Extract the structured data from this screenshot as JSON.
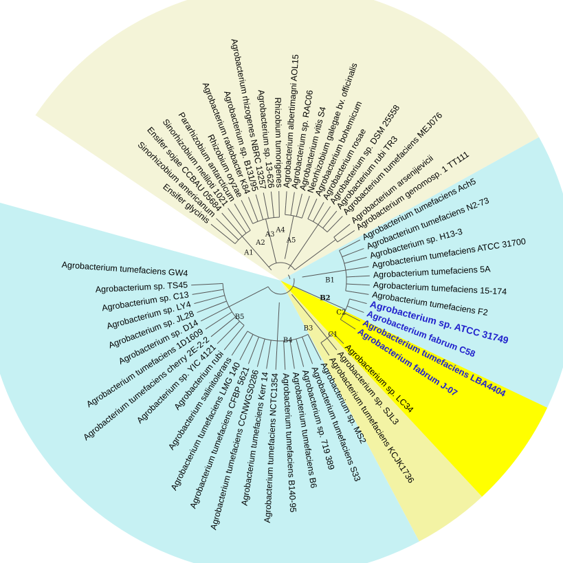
{
  "colors": {
    "clade_a": "#f4f4d8",
    "clade_b": "#c6f1f3",
    "clade_c": "#f3f3a4",
    "highlight": "#ffff00",
    "highlight_text": "#2222cc",
    "branch": "#555555"
  },
  "sectors": [
    {
      "name": "clade-A-sector",
      "color": "clade_a",
      "from": -146,
      "to": -29
    },
    {
      "name": "clade-B-sector",
      "color": "clade_b",
      "from": -29,
      "to": 38
    },
    {
      "name": "clade-C-sector",
      "color": "clade_c",
      "from": 38,
      "to": 62
    },
    {
      "name": "clade-B-sector-lower",
      "color": "clade_b",
      "from": 62,
      "to": 195.5
    }
  ],
  "highlight_sector": {
    "from": 25.5,
    "to": 47
  },
  "node_labels": [
    {
      "text": "A1",
      "a": -139,
      "r": 61,
      "bold": false
    },
    {
      "text": "A2",
      "a": -118,
      "r": 62,
      "bold": false
    },
    {
      "text": "A3",
      "a": -103,
      "r": 68,
      "bold": false
    },
    {
      "text": "A4",
      "a": -90,
      "r": 73,
      "bold": false
    },
    {
      "text": "A5",
      "a": -75,
      "r": 60,
      "bold": false
    },
    {
      "text": "B1",
      "a": 0,
      "r": 72,
      "bold": false
    },
    {
      "text": "B2",
      "a": 22,
      "r": 70,
      "bold": true
    },
    {
      "text": "C2",
      "a": 28,
      "r": 100,
      "bold": false
    },
    {
      "text": "C1",
      "a": 46,
      "r": 110,
      "bold": false
    },
    {
      "text": "B3",
      "a": 60,
      "r": 81,
      "bold": false
    },
    {
      "text": "B4",
      "a": 83,
      "r": 88,
      "bold": false
    },
    {
      "text": "B5",
      "a": 138,
      "r": 80,
      "bold": false
    }
  ],
  "leaves": [
    {
      "name": "Ensifer glycinis",
      "a": -141,
      "hl": false
    },
    {
      "name": "Sinorhizobium americanum",
      "a": -136,
      "hl": false
    },
    {
      "name": "Ensifer sojae CCBAU 05684",
      "a": -131,
      "hl": false
    },
    {
      "name": "Sinorhizobium meliloti 1021",
      "a": -126,
      "hl": false
    },
    {
      "name": "Pararhizobium antarcticum",
      "a": -121,
      "hl": false
    },
    {
      "name": "Rhizobium oryzae",
      "a": -116,
      "hl": false
    },
    {
      "name": "Agrobacterium radiobacter K84",
      "a": -111,
      "hl": false
    },
    {
      "name": "Agrobacterium sp. B131/95",
      "a": -106,
      "hl": false
    },
    {
      "name": "Agrobacterium rhizogenes NBRC 13257",
      "a": -101,
      "hl": false
    },
    {
      "name": "Agrobacterium sp. 13-626",
      "a": -96,
      "hl": false
    },
    {
      "name": "Rhizobium tumorigenes",
      "a": -91,
      "hl": false
    },
    {
      "name": "Agrobacterium albertimagni AOL15",
      "a": -86,
      "hl": false
    },
    {
      "name": "Agrobacterium sp. RAC06",
      "a": -81,
      "hl": false
    },
    {
      "name": "Agrobacterium vitis S4",
      "a": -76,
      "hl": false
    },
    {
      "name": "Neorhizobium galegae bv. officinalis",
      "a": -71,
      "hl": false
    },
    {
      "name": "Agrobacterium bohemicum",
      "a": -66,
      "hl": false
    },
    {
      "name": "Agrobacterium rosae",
      "a": -61,
      "hl": false
    },
    {
      "name": "Agrobacterium sp. DSM 25558",
      "a": -56,
      "hl": false
    },
    {
      "name": "Agrobacterium rubi TR3",
      "a": -51,
      "hl": false
    },
    {
      "name": "Agrobacterium tumefaciens MEJ076",
      "a": -46,
      "hl": false
    },
    {
      "name": "Agrobacterium arsenijevicii",
      "a": -39,
      "hl": false
    },
    {
      "name": "Agrobacterium genomosp. 1 TT111",
      "a": -34,
      "hl": false
    },
    {
      "name": "Agrobacterium tumefaciens Ach5",
      "a": -27,
      "hl": false
    },
    {
      "name": "Agrobacterium tumefaciens N2-73",
      "a": -21,
      "hl": false
    },
    {
      "name": "Agrobacterium sp. H13-3",
      "a": -15,
      "hl": false
    },
    {
      "name": "Agrobacterium tumefaciens ATCC 31700",
      "a": -9,
      "hl": false
    },
    {
      "name": "Agrobacterium tumefaciens 5A",
      "a": -3,
      "hl": false
    },
    {
      "name": "Agrobacterium tumefaciens 15-174",
      "a": 3,
      "hl": false
    },
    {
      "name": "Agrobacterium tumefaciens F2",
      "a": 9,
      "hl": false
    },
    {
      "name": "Agrobacterium sp. ATCC 31749",
      "a": 15,
      "hl": true,
      "big": true
    },
    {
      "name": "Agrobacterium fabrum C58",
      "a": 21,
      "hl": true
    },
    {
      "name": "Agrobacterium tumefaciens LBA4404",
      "a": 27,
      "hl": true
    },
    {
      "name": "Agrobacterium fabrum J-07",
      "a": 33,
      "hl": true
    },
    {
      "name": "Agrobacterium sp. LC34",
      "a": 45,
      "hl": false
    },
    {
      "name": "Agrobacterium sp. SJL3",
      "a": 51,
      "hl": false
    },
    {
      "name": "Agrobacterium tumefaciens KCJK1736",
      "a": 57,
      "hl": false
    },
    {
      "name": "Agrobacterium sp. MS2",
      "a": 63,
      "hl": false
    },
    {
      "name": "Agrobacterium tumefaciens S33",
      "a": 69,
      "hl": false
    },
    {
      "name": "Agrobacterium sp. 719 389",
      "a": 75,
      "hl": false
    },
    {
      "name": "Agrobacterium tumefaciens B6",
      "a": 81,
      "hl": false
    },
    {
      "name": "Agrobacterium tumefaciens B140-95",
      "a": 87,
      "hl": false
    },
    {
      "name": "Agrobacterium tumefaciens NCTC1354",
      "a": 93,
      "hl": false
    },
    {
      "name": "Agrobacterium tumefaciens Kerr 14",
      "a": 99,
      "hl": false
    },
    {
      "name": "Agrobacterium tumefaciens CCNWGS0286",
      "a": 105,
      "hl": false
    },
    {
      "name": "Agrobacterium tumefaciens CFBP 5621",
      "a": 111,
      "hl": false
    },
    {
      "name": "Agrobacterium tumefaciens LMG 140",
      "a": 117,
      "hl": false
    },
    {
      "name": "Agrobacterium salinitolerans",
      "a": 123,
      "hl": false
    },
    {
      "name": "Agrobacterium rubi",
      "a": 129,
      "hl": false
    },
    {
      "name": "Agrobacterium sp. YIC 4121",
      "a": 135,
      "hl": false
    },
    {
      "name": "Agrobacterium tumefaciens cherry 2E-2-2",
      "a": 141,
      "hl": false
    },
    {
      "name": "Agrobacterium tumefaciens 1D1609",
      "a": 147,
      "hl": false
    },
    {
      "name": "Agrobacterium sp. D14",
      "a": 153,
      "hl": false
    },
    {
      "name": "Agrobacterium sp. JL28",
      "a": 159,
      "hl": false
    },
    {
      "name": "Agrobacterium sp. LY4",
      "a": 165,
      "hl": false
    },
    {
      "name": "Agrobacterium sp. C13",
      "a": 171,
      "hl": false
    },
    {
      "name": "Agrobacterium sp. TS45",
      "a": 177,
      "hl": false
    },
    {
      "name": "Agrobacterium tumefaciens GW4",
      "a": 184,
      "hl": false
    }
  ]
}
